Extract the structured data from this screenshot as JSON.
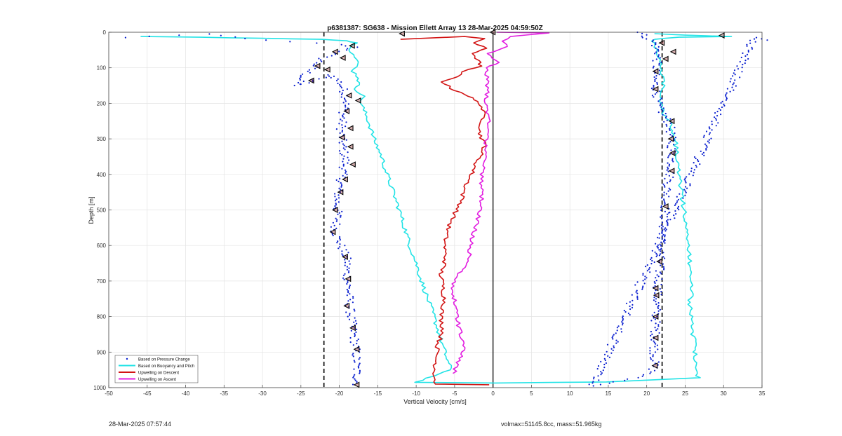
{
  "chart_data": {
    "type": "line",
    "title": "p6381387: SG638 - Mission Ellett Array 13 28-Mar-2025 04:59:50Z",
    "xlabel": "Vertical Velocity [cm/s]",
    "ylabel": "Depth [m]",
    "xlim": [
      -50,
      35
    ],
    "ylim": [
      0,
      1000
    ],
    "y_reversed": true,
    "grid": true,
    "x_ticks": [
      -50,
      -45,
      -40,
      -35,
      -30,
      -25,
      -20,
      -15,
      -10,
      -5,
      0,
      5,
      10,
      15,
      20,
      25,
      30,
      35
    ],
    "y_ticks": [
      0,
      100,
      200,
      300,
      400,
      500,
      600,
      700,
      800,
      900,
      1000
    ],
    "legend_position": "bottom-left",
    "colors": {
      "pressure_points": "#0a1fcf",
      "buoyancy": "#22e3e6",
      "descent": "#d21414",
      "ascent": "#e21ee0",
      "marker_fill": "#8b1a1a"
    },
    "reference_lines": {
      "vertical_solid": 0,
      "vertical_dashed": [
        -22,
        22
      ]
    },
    "series": [
      {
        "name": "Based on Pressure Change",
        "style": "points",
        "segments": [
          [
            [
              -48,
              15
            ],
            [
              -37.5,
              5
            ],
            [
              -30,
              22
            ],
            [
              -20,
              35
            ],
            [
              -18,
              42
            ],
            [
              -22,
              70
            ],
            [
              -23,
              90
            ],
            [
              -24,
              110
            ],
            [
              -25,
              130
            ],
            [
              -25.5,
              150
            ],
            [
              -21,
              120
            ],
            [
              -20,
              140
            ],
            [
              -19.5,
              160
            ],
            [
              -19,
              190
            ],
            [
              -19.5,
              230
            ],
            [
              -19.8,
              280
            ],
            [
              -19.5,
              330
            ],
            [
              -19.2,
              360
            ],
            [
              -19.8,
              420
            ],
            [
              -20.3,
              470
            ],
            [
              -20.2,
              520
            ],
            [
              -20.6,
              560
            ],
            [
              -19.8,
              600
            ],
            [
              -19,
              640
            ],
            [
              -19,
              680
            ],
            [
              -18.8,
              720
            ],
            [
              -18.7,
              760
            ],
            [
              -18.5,
              800
            ],
            [
              -18.2,
              840
            ],
            [
              -17.9,
              880
            ],
            [
              -17.8,
              920
            ],
            [
              -17.7,
              960
            ],
            [
              -17.7,
              995
            ]
          ],
          [
            [
              19,
              0
            ],
            [
              21,
              30
            ],
            [
              21.5,
              60
            ],
            [
              21.2,
              100
            ],
            [
              21,
              130
            ],
            [
              21.3,
              170
            ],
            [
              21.5,
              210
            ],
            [
              22.5,
              240
            ],
            [
              23,
              260
            ],
            [
              23.2,
              300
            ],
            [
              23.3,
              340
            ],
            [
              23.2,
              380
            ],
            [
              22.8,
              420
            ],
            [
              22.5,
              470
            ],
            [
              22.3,
              520
            ],
            [
              22,
              570
            ],
            [
              21.8,
              620
            ],
            [
              21.7,
              660
            ],
            [
              21.5,
              710
            ],
            [
              21.3,
              750
            ],
            [
              21.2,
              800
            ],
            [
              21.1,
              850
            ],
            [
              21,
              900
            ],
            [
              21,
              940
            ],
            [
              20.5,
              960
            ],
            [
              17,
              980
            ],
            [
              13,
              995
            ],
            [
              34,
              15
            ],
            [
              35.5,
              22
            ],
            [
              29,
              25
            ]
          ]
        ]
      },
      {
        "name": "Based on Buoyancy and Pitch",
        "style": "line",
        "segments": [
          [
            [
              -46,
              12
            ],
            [
              -38,
              14
            ],
            [
              -30,
              17
            ],
            [
              -22,
              20
            ],
            [
              -19,
              24
            ],
            [
              -17.8,
              30
            ],
            [
              -18.5,
              50
            ],
            [
              -18,
              70
            ],
            [
              -17.6,
              90
            ],
            [
              -18.2,
              110
            ],
            [
              -17.4,
              130
            ],
            [
              -17.8,
              160
            ],
            [
              -16.9,
              180
            ],
            [
              -17.2,
              200
            ],
            [
              -16.2,
              250
            ],
            [
              -15.5,
              300
            ],
            [
              -14.5,
              350
            ],
            [
              -13.8,
              400
            ],
            [
              -13,
              450
            ],
            [
              -12.2,
              500
            ],
            [
              -11.5,
              550
            ],
            [
              -10.8,
              600
            ],
            [
              -10,
              650
            ],
            [
              -9.3,
              700
            ],
            [
              -8.5,
              750
            ],
            [
              -7.7,
              800
            ],
            [
              -7,
              850
            ],
            [
              -6.3,
              900
            ],
            [
              -5.5,
              950
            ],
            [
              -10,
              985
            ],
            [
              0,
              987
            ],
            [
              15,
              984
            ],
            [
              26.7,
              972
            ],
            [
              26.4,
              950
            ],
            [
              26.5,
              930
            ],
            [
              26.2,
              900
            ],
            [
              26.4,
              870
            ],
            [
              26,
              850
            ],
            [
              25.8,
              820
            ],
            [
              25.9,
              800
            ],
            [
              25.6,
              760
            ],
            [
              25.9,
              730
            ],
            [
              25.7,
              700
            ],
            [
              25.6,
              650
            ],
            [
              25.4,
              600
            ],
            [
              25.1,
              550
            ],
            [
              24.9,
              500
            ],
            [
              24.5,
              450
            ],
            [
              24.2,
              400
            ],
            [
              24,
              350
            ],
            [
              23.7,
              300
            ],
            [
              23.2,
              260
            ],
            [
              22.2,
              230
            ],
            [
              21.8,
              200
            ],
            [
              22.1,
              150
            ],
            [
              21.8,
              100
            ],
            [
              21.5,
              60
            ],
            [
              20.8,
              30
            ],
            [
              21,
              20
            ],
            [
              24,
              14
            ],
            [
              31,
              12
            ],
            [
              25,
              8
            ],
            [
              21,
              4
            ]
          ]
        ]
      },
      {
        "name": "Upwelling on Descent",
        "style": "line",
        "segments": [
          [
            [
              -12,
              20
            ],
            [
              -4,
              12
            ],
            [
              -1,
              18
            ],
            [
              -2.5,
              30
            ],
            [
              -1,
              45
            ],
            [
              -2.5,
              60
            ],
            [
              -2,
              80
            ],
            [
              -1.5,
              95
            ],
            [
              -3.5,
              105
            ],
            [
              -4.8,
              125
            ],
            [
              -6.5,
              140
            ],
            [
              -5.5,
              158
            ],
            [
              -3.5,
              175
            ],
            [
              -2.5,
              190
            ],
            [
              -1.5,
              205
            ],
            [
              -1.2,
              240
            ],
            [
              -1.8,
              280
            ],
            [
              -1,
              320
            ],
            [
              -2,
              360
            ],
            [
              -2.8,
              400
            ],
            [
              -3.7,
              440
            ],
            [
              -4.2,
              480
            ],
            [
              -5.2,
              520
            ],
            [
              -6,
              560
            ],
            [
              -6.3,
              600
            ],
            [
              -6.2,
              640
            ],
            [
              -6.8,
              680
            ],
            [
              -6.5,
              720
            ],
            [
              -6.3,
              760
            ],
            [
              -6.8,
              800
            ],
            [
              -6.5,
              840
            ],
            [
              -7.2,
              880
            ],
            [
              -7.4,
              920
            ],
            [
              -7.6,
              960
            ],
            [
              -7.5,
              990
            ],
            [
              -0.5,
              992
            ]
          ]
        ]
      },
      {
        "name": "Upwelling on Ascent",
        "style": "line",
        "segments": [
          [
            [
              -5,
              960
            ],
            [
              -4.8,
              935
            ],
            [
              -3.8,
              900
            ],
            [
              -4.2,
              850
            ],
            [
              -4.8,
              800
            ],
            [
              -5,
              760
            ],
            [
              -5.3,
              720
            ],
            [
              -4.8,
              690
            ],
            [
              -3.2,
              650
            ],
            [
              -3,
              600
            ],
            [
              -2.3,
              550
            ],
            [
              -1.6,
              500
            ],
            [
              -1.5,
              450
            ],
            [
              -1.4,
              400
            ],
            [
              -1.1,
              350
            ],
            [
              -0.8,
              300
            ],
            [
              -0.6,
              250
            ],
            [
              -1,
              200
            ],
            [
              -0.7,
              150
            ],
            [
              -0.8,
              120
            ],
            [
              -1,
              100
            ],
            [
              0.8,
              85
            ],
            [
              -0.5,
              60
            ],
            [
              2,
              40
            ],
            [
              1,
              25
            ],
            [
              2.5,
              12
            ],
            [
              7,
              2
            ],
            [
              0.5,
              0
            ]
          ]
        ]
      }
    ],
    "marker_points": [
      [
        -18.3,
        38
      ],
      [
        -20.5,
        55
      ],
      [
        -19.5,
        72
      ],
      [
        -22.8,
        95
      ],
      [
        -21.5,
        105
      ],
      [
        -23.6,
        136
      ],
      [
        -18.7,
        178
      ],
      [
        -17.5,
        192
      ],
      [
        -19,
        222
      ],
      [
        -18.5,
        270
      ],
      [
        -19.6,
        296
      ],
      [
        -18.5,
        322
      ],
      [
        -18.2,
        372
      ],
      [
        -19.2,
        414
      ],
      [
        -19.8,
        450
      ],
      [
        -20.5,
        500
      ],
      [
        -20.8,
        562
      ],
      [
        -19.2,
        632
      ],
      [
        -18.8,
        694
      ],
      [
        -19,
        770
      ],
      [
        -18.2,
        832
      ],
      [
        -17.7,
        892
      ],
      [
        -17.7,
        992
      ],
      [
        0,
        0
      ],
      [
        -11.8,
        4
      ],
      [
        29.8,
        9
      ],
      [
        22,
        30
      ],
      [
        23.5,
        55
      ],
      [
        22.5,
        75
      ],
      [
        21.2,
        110
      ],
      [
        21.2,
        160
      ],
      [
        23.3,
        250
      ],
      [
        23.2,
        300
      ],
      [
        23.4,
        340
      ],
      [
        23.3,
        390
      ],
      [
        22.5,
        490
      ],
      [
        21.7,
        645
      ],
      [
        21.2,
        720
      ],
      [
        21.3,
        740
      ],
      [
        21.2,
        800
      ],
      [
        21.2,
        860
      ],
      [
        21.1,
        938
      ]
    ]
  },
  "footer": {
    "timestamp": "28-Mar-2025 07:57:44",
    "info": "volmax=51145.8cc, mass=51.965kg"
  }
}
